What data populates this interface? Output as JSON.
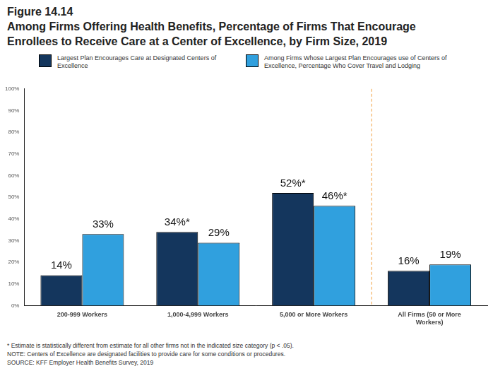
{
  "chart_data": {
    "type": "bar",
    "figure_label": "Figure 14.14",
    "title": "Among Firms Offering Health Benefits, Percentage of Firms That Encourage Enrollees to Receive Care at a Center of Excellence, by Firm Size, 2019",
    "categories": [
      "200-999 Workers",
      "1,000-4,999 Workers",
      "5,000 or More Workers",
      "All Firms (50 or More Workers)"
    ],
    "series": [
      {
        "name": "Largest Plan Encourages Care at Designated Centers of Excellence",
        "color": "#14365d",
        "values": [
          14,
          34,
          52,
          16
        ],
        "value_labels": [
          "14%",
          "34%*",
          "52%*",
          "16%"
        ]
      },
      {
        "name": "Among Firms Whose Largest Plan Encourages use of Centers of Excellence, Percentage Who Cover Travel and Lodging",
        "color": "#30a0de",
        "values": [
          33,
          29,
          46,
          19
        ],
        "value_labels": [
          "33%",
          "29%",
          "46%*",
          "19%"
        ]
      }
    ],
    "ylim": [
      0,
      100
    ],
    "yticks": [
      {
        "value": 0,
        "label": "0%"
      },
      {
        "value": 10,
        "label": "10%"
      },
      {
        "value": 20,
        "label": "20%"
      },
      {
        "value": 30,
        "label": "30%"
      },
      {
        "value": 40,
        "label": "40%"
      },
      {
        "value": 50,
        "label": "50%"
      },
      {
        "value": 60,
        "label": "60%"
      },
      {
        "value": 70,
        "label": "70%"
      },
      {
        "value": 80,
        "label": "80%"
      },
      {
        "value": 90,
        "label": "90%"
      },
      {
        "value": 100,
        "label": "100%"
      }
    ],
    "grid": false,
    "legend": "top",
    "data_labels": true,
    "footnotes": [
      "* Estimate is statistically different from estimate for all other firms not in the indicated size category (p < .05).",
      "NOTE: Centers of Excellence are designated facilities to provide care for some conditions or procedures.",
      "SOURCE: KFF Employer Health Benefits Survey, 2019"
    ]
  }
}
